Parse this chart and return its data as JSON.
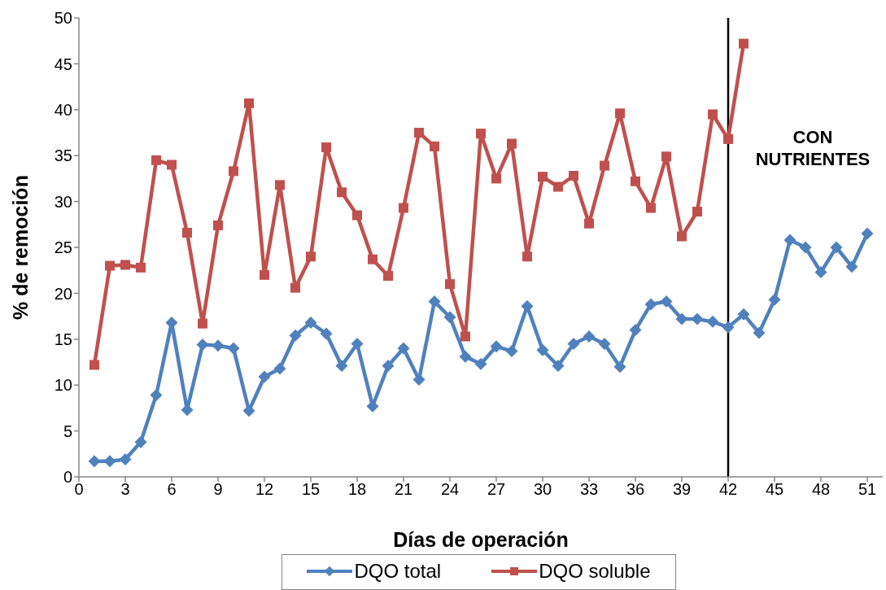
{
  "chart_data": {
    "type": "line",
    "xlabel": "Días de operación",
    "ylabel": "% de remoción",
    "x": [
      1,
      2,
      3,
      4,
      5,
      6,
      7,
      8,
      9,
      10,
      11,
      12,
      13,
      14,
      15,
      16,
      17,
      18,
      19,
      20,
      21,
      22,
      23,
      24,
      25,
      26,
      27,
      28,
      29,
      30,
      31,
      32,
      33,
      34,
      35,
      36,
      37,
      38,
      39,
      40,
      41,
      42,
      43,
      44,
      45,
      46,
      47,
      48,
      49,
      50,
      51
    ],
    "xlim": [
      0,
      52
    ],
    "xticks": [
      0,
      3,
      6,
      9,
      12,
      15,
      18,
      21,
      24,
      27,
      30,
      33,
      36,
      39,
      42,
      45,
      48,
      51
    ],
    "ylim": [
      0,
      50
    ],
    "yticks": [
      0,
      5,
      10,
      15,
      20,
      25,
      30,
      35,
      40,
      45,
      50
    ],
    "legend": "bottom",
    "line_style": "solid",
    "series": [
      {
        "name": "DQO total",
        "color": "#4f81bd",
        "marker": "diamond",
        "values": [
          1.7,
          1.7,
          1.9,
          3.8,
          8.9,
          16.8,
          7.3,
          14.4,
          14.3,
          14.0,
          7.2,
          10.9,
          11.8,
          15.4,
          16.8,
          15.6,
          12.1,
          14.5,
          7.7,
          12.1,
          14.0,
          10.6,
          19.1,
          17.4,
          13.1,
          12.3,
          14.2,
          13.7,
          18.6,
          13.8,
          12.1,
          14.5,
          15.3,
          14.5,
          12.0,
          16.0,
          18.8,
          19.1,
          17.2,
          17.2,
          16.9,
          16.3,
          17.7,
          15.7,
          19.3,
          25.8,
          25.0,
          22.3,
          25.0,
          22.9,
          26.5
        ]
      },
      {
        "name": "DQO soluble",
        "color": "#c0504d",
        "marker": "square",
        "values": [
          12.2,
          23.0,
          23.1,
          22.8,
          34.5,
          34.0,
          26.6,
          16.7,
          27.4,
          33.3,
          40.7,
          22.0,
          31.8,
          20.6,
          24.0,
          35.9,
          31.0,
          28.5,
          23.7,
          21.9,
          29.3,
          37.5,
          36.0,
          21.0,
          15.3,
          37.4,
          32.5,
          36.3,
          24.0,
          32.7,
          31.6,
          32.8,
          27.6,
          33.9,
          39.6,
          32.2,
          29.3,
          34.9,
          26.2,
          28.9,
          39.5,
          36.8,
          47.2,
          null,
          null,
          null,
          null,
          null,
          null,
          null,
          null
        ]
      }
    ],
    "ref_lines": [
      {
        "axis": "x",
        "value": 42,
        "label": "CON NUTRIENTES",
        "color": "#000000"
      }
    ]
  }
}
